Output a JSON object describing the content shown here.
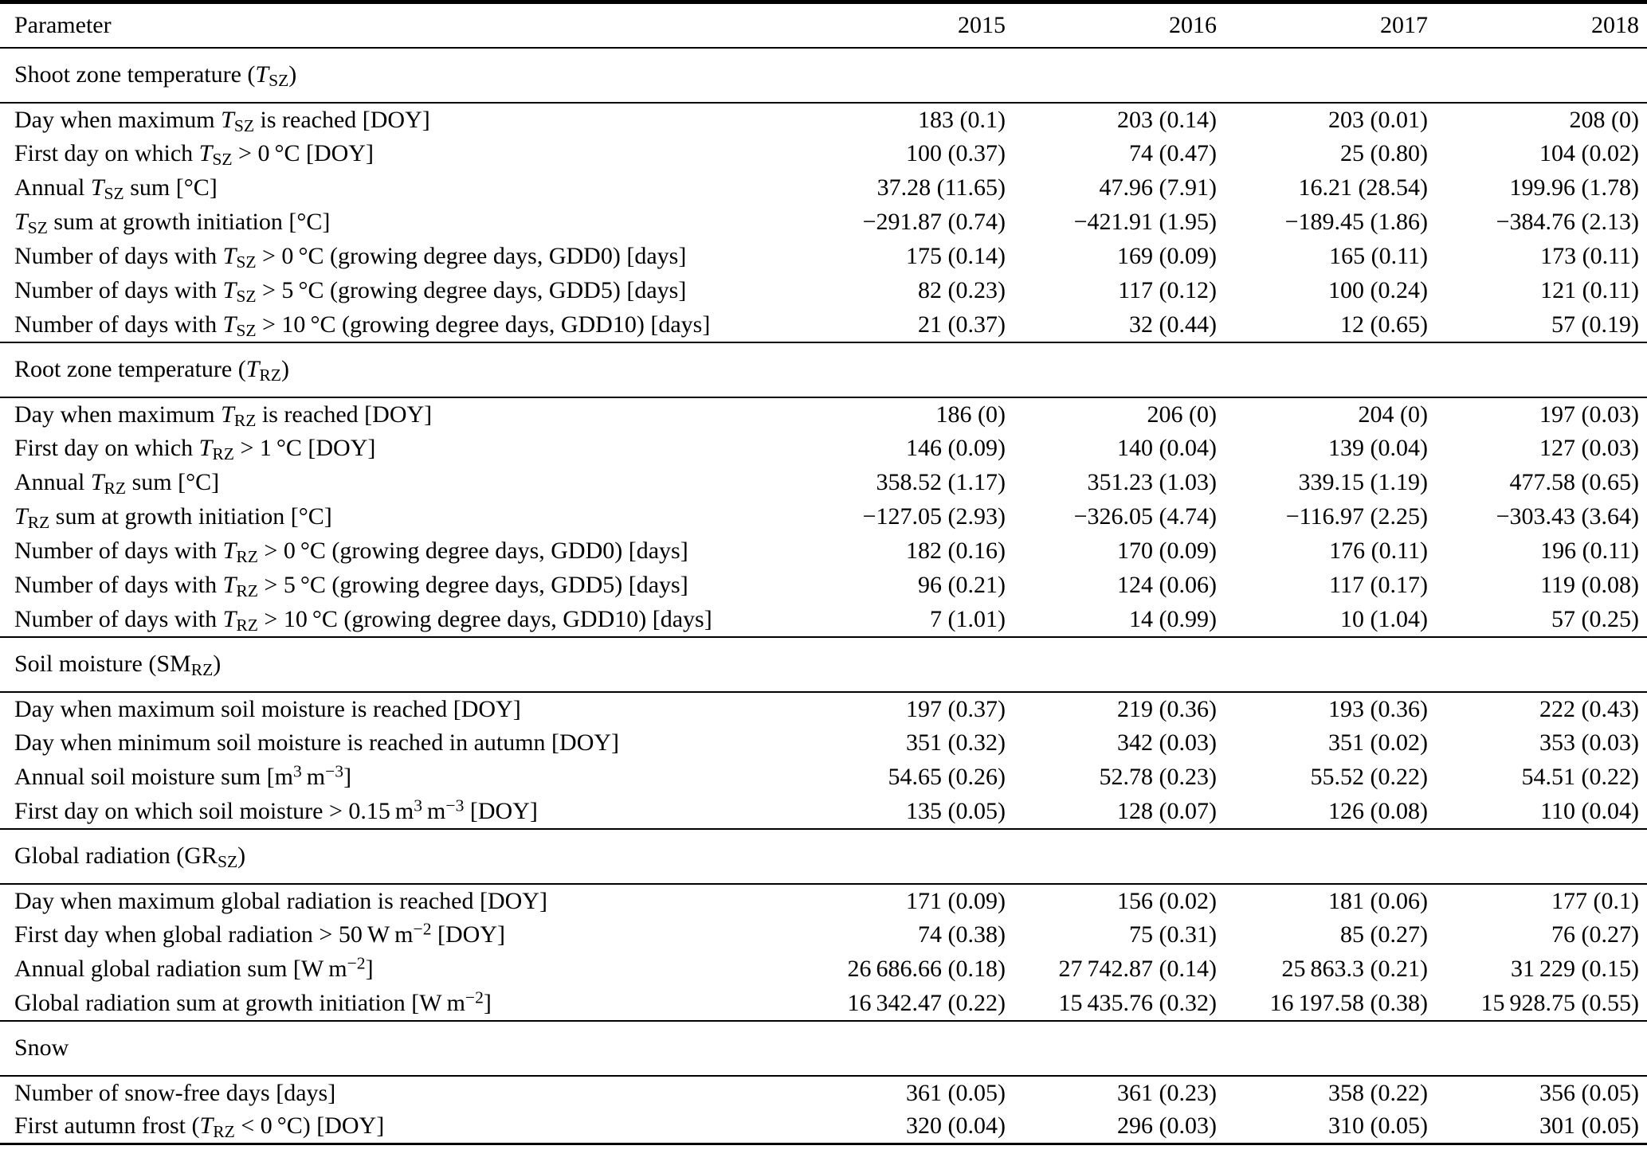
{
  "page": {
    "background_color": "#ffffff",
    "text_color": "#000000",
    "rule_color": "#000000"
  },
  "header": {
    "parameter_label": "Parameter",
    "years": [
      "2015",
      "2016",
      "2017",
      "2018"
    ]
  },
  "sections": [
    {
      "title_html": "Shoot zone temperature (<i>T</i><sub>SZ</sub>)",
      "rows": [
        {
          "label_html": "Day when maximum <i>T</i><sub>SZ</sub> is reached [DOY]",
          "values": [
            "183 (0.1)",
            "203 (0.14)",
            "203 (0.01)",
            "208 (0)"
          ]
        },
        {
          "label_html": "First day on which <i>T</i><sub>SZ</sub> &gt; 0 °C [DOY]",
          "values": [
            "100 (0.37)",
            "74 (0.47)",
            "25 (0.80)",
            "104 (0.02)"
          ]
        },
        {
          "label_html": "Annual <i>T</i><sub>SZ</sub> sum [°C]",
          "values": [
            "37.28 (11.65)",
            "47.96 (7.91)",
            "16.21 (28.54)",
            "199.96 (1.78)"
          ]
        },
        {
          "label_html": "<i>T</i><sub>SZ</sub> sum at growth initiation [°C]",
          "values": [
            "−291.87 (0.74)",
            "−421.91 (1.95)",
            "−189.45 (1.86)",
            "−384.76 (2.13)"
          ]
        },
        {
          "label_html": "Number of days with <i>T</i><sub>SZ</sub> &gt; 0 °C (growing degree days, GDD0) [days]",
          "values": [
            "175 (0.14)",
            "169 (0.09)",
            "165 (0.11)",
            "173 (0.11)"
          ]
        },
        {
          "label_html": "Number of days with <i>T</i><sub>SZ</sub> &gt; 5 °C (growing degree days, GDD5) [days]",
          "values": [
            "82 (0.23)",
            "117 (0.12)",
            "100 (0.24)",
            "121 (0.11)"
          ]
        },
        {
          "label_html": "Number of days with <i>T</i><sub>SZ</sub> &gt; 10 °C (growing degree days, GDD10) [days]",
          "values": [
            "21 (0.37)",
            "32 (0.44)",
            "12 (0.65)",
            "57 (0.19)"
          ]
        }
      ]
    },
    {
      "title_html": "Root zone temperature (<i>T</i><sub>RZ</sub>)",
      "rows": [
        {
          "label_html": "Day when maximum <i>T</i><sub>RZ</sub> is reached [DOY]",
          "values": [
            "186 (0)",
            "206 (0)",
            "204 (0)",
            "197 (0.03)"
          ]
        },
        {
          "label_html": "First day on which <i>T</i><sub>RZ</sub> &gt; 1 °C [DOY]",
          "values": [
            "146 (0.09)",
            "140 (0.04)",
            "139 (0.04)",
            "127 (0.03)"
          ]
        },
        {
          "label_html": "Annual <i>T</i><sub>RZ</sub> sum [°C]",
          "values": [
            "358.52 (1.17)",
            "351.23 (1.03)",
            "339.15 (1.19)",
            "477.58 (0.65)"
          ]
        },
        {
          "label_html": "<i>T</i><sub>RZ</sub> sum at growth initiation [°C]",
          "values": [
            "−127.05 (2.93)",
            "−326.05 (4.74)",
            "−116.97 (2.25)",
            "−303.43 (3.64)"
          ]
        },
        {
          "label_html": "Number of days with <i>T</i><sub>RZ</sub> &gt; 0 °C (growing degree days, GDD0) [days]",
          "values": [
            "182 (0.16)",
            "170 (0.09)",
            "176 (0.11)",
            "196 (0.11)"
          ]
        },
        {
          "label_html": "Number of days with <i>T</i><sub>RZ</sub> &gt; 5 °C (growing degree days, GDD5) [days]",
          "values": [
            "96 (0.21)",
            "124 (0.06)",
            "117 (0.17)",
            "119 (0.08)"
          ]
        },
        {
          "label_html": "Number of days with <i>T</i><sub>RZ</sub> &gt; 10 °C (growing degree days, GDD10) [days]",
          "values": [
            "7 (1.01)",
            "14 (0.99)",
            "10 (1.04)",
            "57 (0.25)"
          ]
        }
      ]
    },
    {
      "title_html": "Soil moisture (SM<sub>RZ</sub>)",
      "rows": [
        {
          "label_html": "Day when maximum soil moisture is reached [DOY]",
          "values": [
            "197 (0.37)",
            "219 (0.36)",
            "193 (0.36)",
            "222 (0.43)"
          ]
        },
        {
          "label_html": "Day when minimum soil moisture is reached in autumn [DOY]",
          "values": [
            "351 (0.32)",
            "342 (0.03)",
            "351 (0.02)",
            "353 (0.03)"
          ]
        },
        {
          "label_html": "Annual soil moisture sum [m<sup>3</sup> m<sup>−3</sup>]",
          "values": [
            "54.65 (0.26)",
            "52.78 (0.23)",
            "55.52 (0.22)",
            "54.51 (0.22)"
          ]
        },
        {
          "label_html": "First day on which soil moisture &gt; 0.15 m<sup>3</sup> m<sup>−3</sup> [DOY]",
          "values": [
            "135 (0.05)",
            "128 (0.07)",
            "126 (0.08)",
            "110 (0.04)"
          ]
        }
      ]
    },
    {
      "title_html": "Global radiation (GR<sub>SZ</sub>)",
      "rows": [
        {
          "label_html": "Day when maximum global radiation is reached [DOY]",
          "values": [
            "171 (0.09)",
            "156 (0.02)",
            "181 (0.06)",
            "177 (0.1)"
          ]
        },
        {
          "label_html": "First day when global radiation &gt; 50 W m<sup>−2</sup> [DOY]",
          "values": [
            "74 (0.38)",
            "75 (0.31)",
            "85 (0.27)",
            "76 (0.27)"
          ]
        },
        {
          "label_html": "Annual global radiation sum [W m<sup>−2</sup>]",
          "values": [
            "26 686.66 (0.18)",
            "27 742.87 (0.14)",
            "25 863.3 (0.21)",
            "31 229 (0.15)"
          ]
        },
        {
          "label_html": "Global radiation sum at growth initiation [W m<sup>−2</sup>]",
          "values": [
            "16 342.47 (0.22)",
            "15 435.76 (0.32)",
            "16 197.58 (0.38)",
            "15 928.75 (0.55)"
          ]
        }
      ]
    },
    {
      "title_html": "Snow",
      "rows": [
        {
          "label_html": "Number of snow-free days [days]",
          "values": [
            "361 (0.05)",
            "361 (0.23)",
            "358 (0.22)",
            "356 (0.05)"
          ]
        },
        {
          "label_html": "First autumn frost (<i>T</i><sub>RZ</sub> &lt; 0 °C) [DOY]",
          "values": [
            "320 (0.04)",
            "296 (0.03)",
            "310 (0.05)",
            "301 (0.05)"
          ]
        }
      ]
    }
  ]
}
